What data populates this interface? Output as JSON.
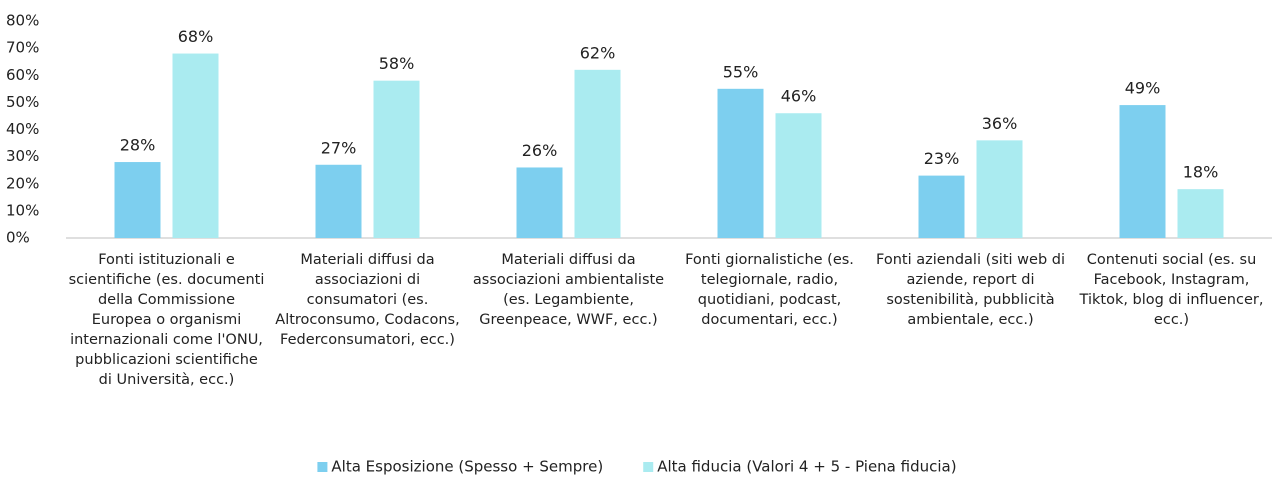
{
  "chart_data": {
    "type": "bar",
    "categories": [
      "Fonti istituzionali e scientifiche (es. documenti della Commissione Europea o organismi internazionali come l'ONU, pubblicazioni scientifiche di Università, ecc.)",
      "Materiali diffusi da associazioni di consumatori (es. Altroconsumo, Codacons, Federconsumatori, ecc.)",
      "Materiali diffusi da associazioni ambientaliste (es. Legambiente, Greenpeace, WWF, ecc.)",
      "Fonti giornalistiche (es. telegiornale, radio, quotidiani, podcast, documentari, ecc.)",
      "Fonti aziendali (siti web di aziende, report di sostenibilità, pubblicità ambientale, ecc.)",
      "Contenuti social (es. su Facebook, Instagram, Tiktok, blog di influencer, ecc.)"
    ],
    "series": [
      {
        "name": "Alta Esposizione (Spesso + Sempre)",
        "color": "#7dcfef",
        "values": [
          28,
          27,
          26,
          55,
          23,
          49
        ],
        "value_labels": [
          "28%",
          "27%",
          "26%",
          "55%",
          "23%",
          "49%"
        ]
      },
      {
        "name": "Alta fiducia (Valori 4 + 5 - Piena fiducia)",
        "color": "#aaebf0",
        "values": [
          68,
          58,
          62,
          46,
          36,
          18
        ],
        "value_labels": [
          "68%",
          "58%",
          "62%",
          "46%",
          "36%",
          "18%"
        ]
      }
    ],
    "ylim": [
      0,
      80
    ],
    "yticks": [
      {
        "value": 0,
        "label": "0%"
      },
      {
        "value": 10,
        "label": "10%"
      },
      {
        "value": 20,
        "label": "20%"
      },
      {
        "value": 30,
        "label": "30%"
      },
      {
        "value": 40,
        "label": "40%"
      },
      {
        "value": 50,
        "label": "50%"
      },
      {
        "value": 60,
        "label": "60%"
      },
      {
        "value": 70,
        "label": "70%"
      },
      {
        "value": 80,
        "label": "80%"
      }
    ],
    "legend": "bottom"
  }
}
